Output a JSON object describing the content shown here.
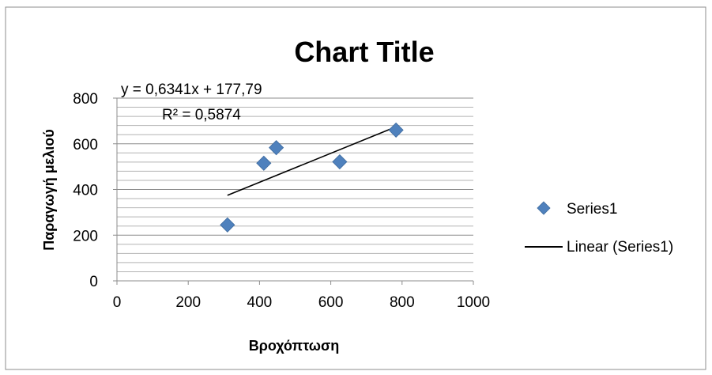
{
  "chart_data": {
    "type": "scatter",
    "title": "Chart Title",
    "xlabel": "Βροχόπτωση",
    "ylabel": "Παραγωγή μελιού",
    "xlim": [
      0,
      1000
    ],
    "ylim": [
      0,
      800
    ],
    "x_ticks": [
      "0",
      "200",
      "400",
      "600",
      "800",
      "1000"
    ],
    "y_ticks": [
      "0",
      "200",
      "400",
      "600",
      "800"
    ],
    "grid": "horizontal major and minor",
    "legend_position": "right",
    "series": [
      {
        "name": "Series1",
        "color": "#4F81BD",
        "marker": "diamond",
        "points": [
          {
            "x": 310,
            "y": 245
          },
          {
            "x": 412,
            "y": 515
          },
          {
            "x": 447,
            "y": 583
          },
          {
            "x": 625,
            "y": 521
          },
          {
            "x": 783,
            "y": 660
          }
        ]
      }
    ],
    "trendline": {
      "name": "Linear (Series1)",
      "type": "linear",
      "slope": 0.6341,
      "intercept": 177.79,
      "x_range": [
        310,
        783
      ],
      "color": "#000000",
      "equation_label": "y = 0,6341x + 177,79",
      "r2_label": "R² = 0,5874"
    }
  }
}
